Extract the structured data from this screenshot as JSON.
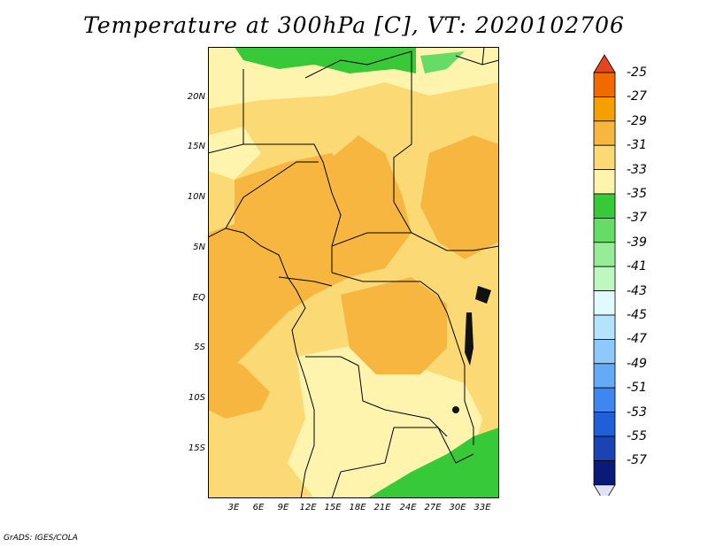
{
  "title": "Temperature at 300hPa [C], VT: 2020102706",
  "credit": "GrADS: IGES/COLA",
  "lat_ticks": [
    "20N",
    "15N",
    "10N",
    "5N",
    "EQ",
    "5S",
    "10S",
    "15S"
  ],
  "lon_ticks": [
    "3E",
    "6E",
    "9E",
    "12E",
    "15E",
    "18E",
    "21E",
    "24E",
    "27E",
    "30E",
    "33E"
  ],
  "colorbar": {
    "labels": [
      "-25",
      "-27",
      "-29",
      "-31",
      "-33",
      "-35",
      "-37",
      "-39",
      "-41",
      "-43",
      "-45",
      "-47",
      "-49",
      "-51",
      "-53",
      "-55",
      "-57"
    ],
    "colors": [
      "#e4461e",
      "#f06a00",
      "#f5a000",
      "#f6b640",
      "#fbd974",
      "#fff4ae",
      "#38c939",
      "#66db66",
      "#97ec97",
      "#bff7c0",
      "#e1fafe",
      "#b5e3fd",
      "#8fc8fa",
      "#65aaf7",
      "#3e86f0",
      "#205fd8",
      "#1a43b4",
      "#0a1a78",
      "#dfe3f6"
    ]
  },
  "legend_colors": {
    "c29": "#f5a000",
    "c31": "#f6b640",
    "c33": "#fbd974",
    "c35": "#fff4ae",
    "c37": "#38c939",
    "c39": "#66db66"
  }
}
